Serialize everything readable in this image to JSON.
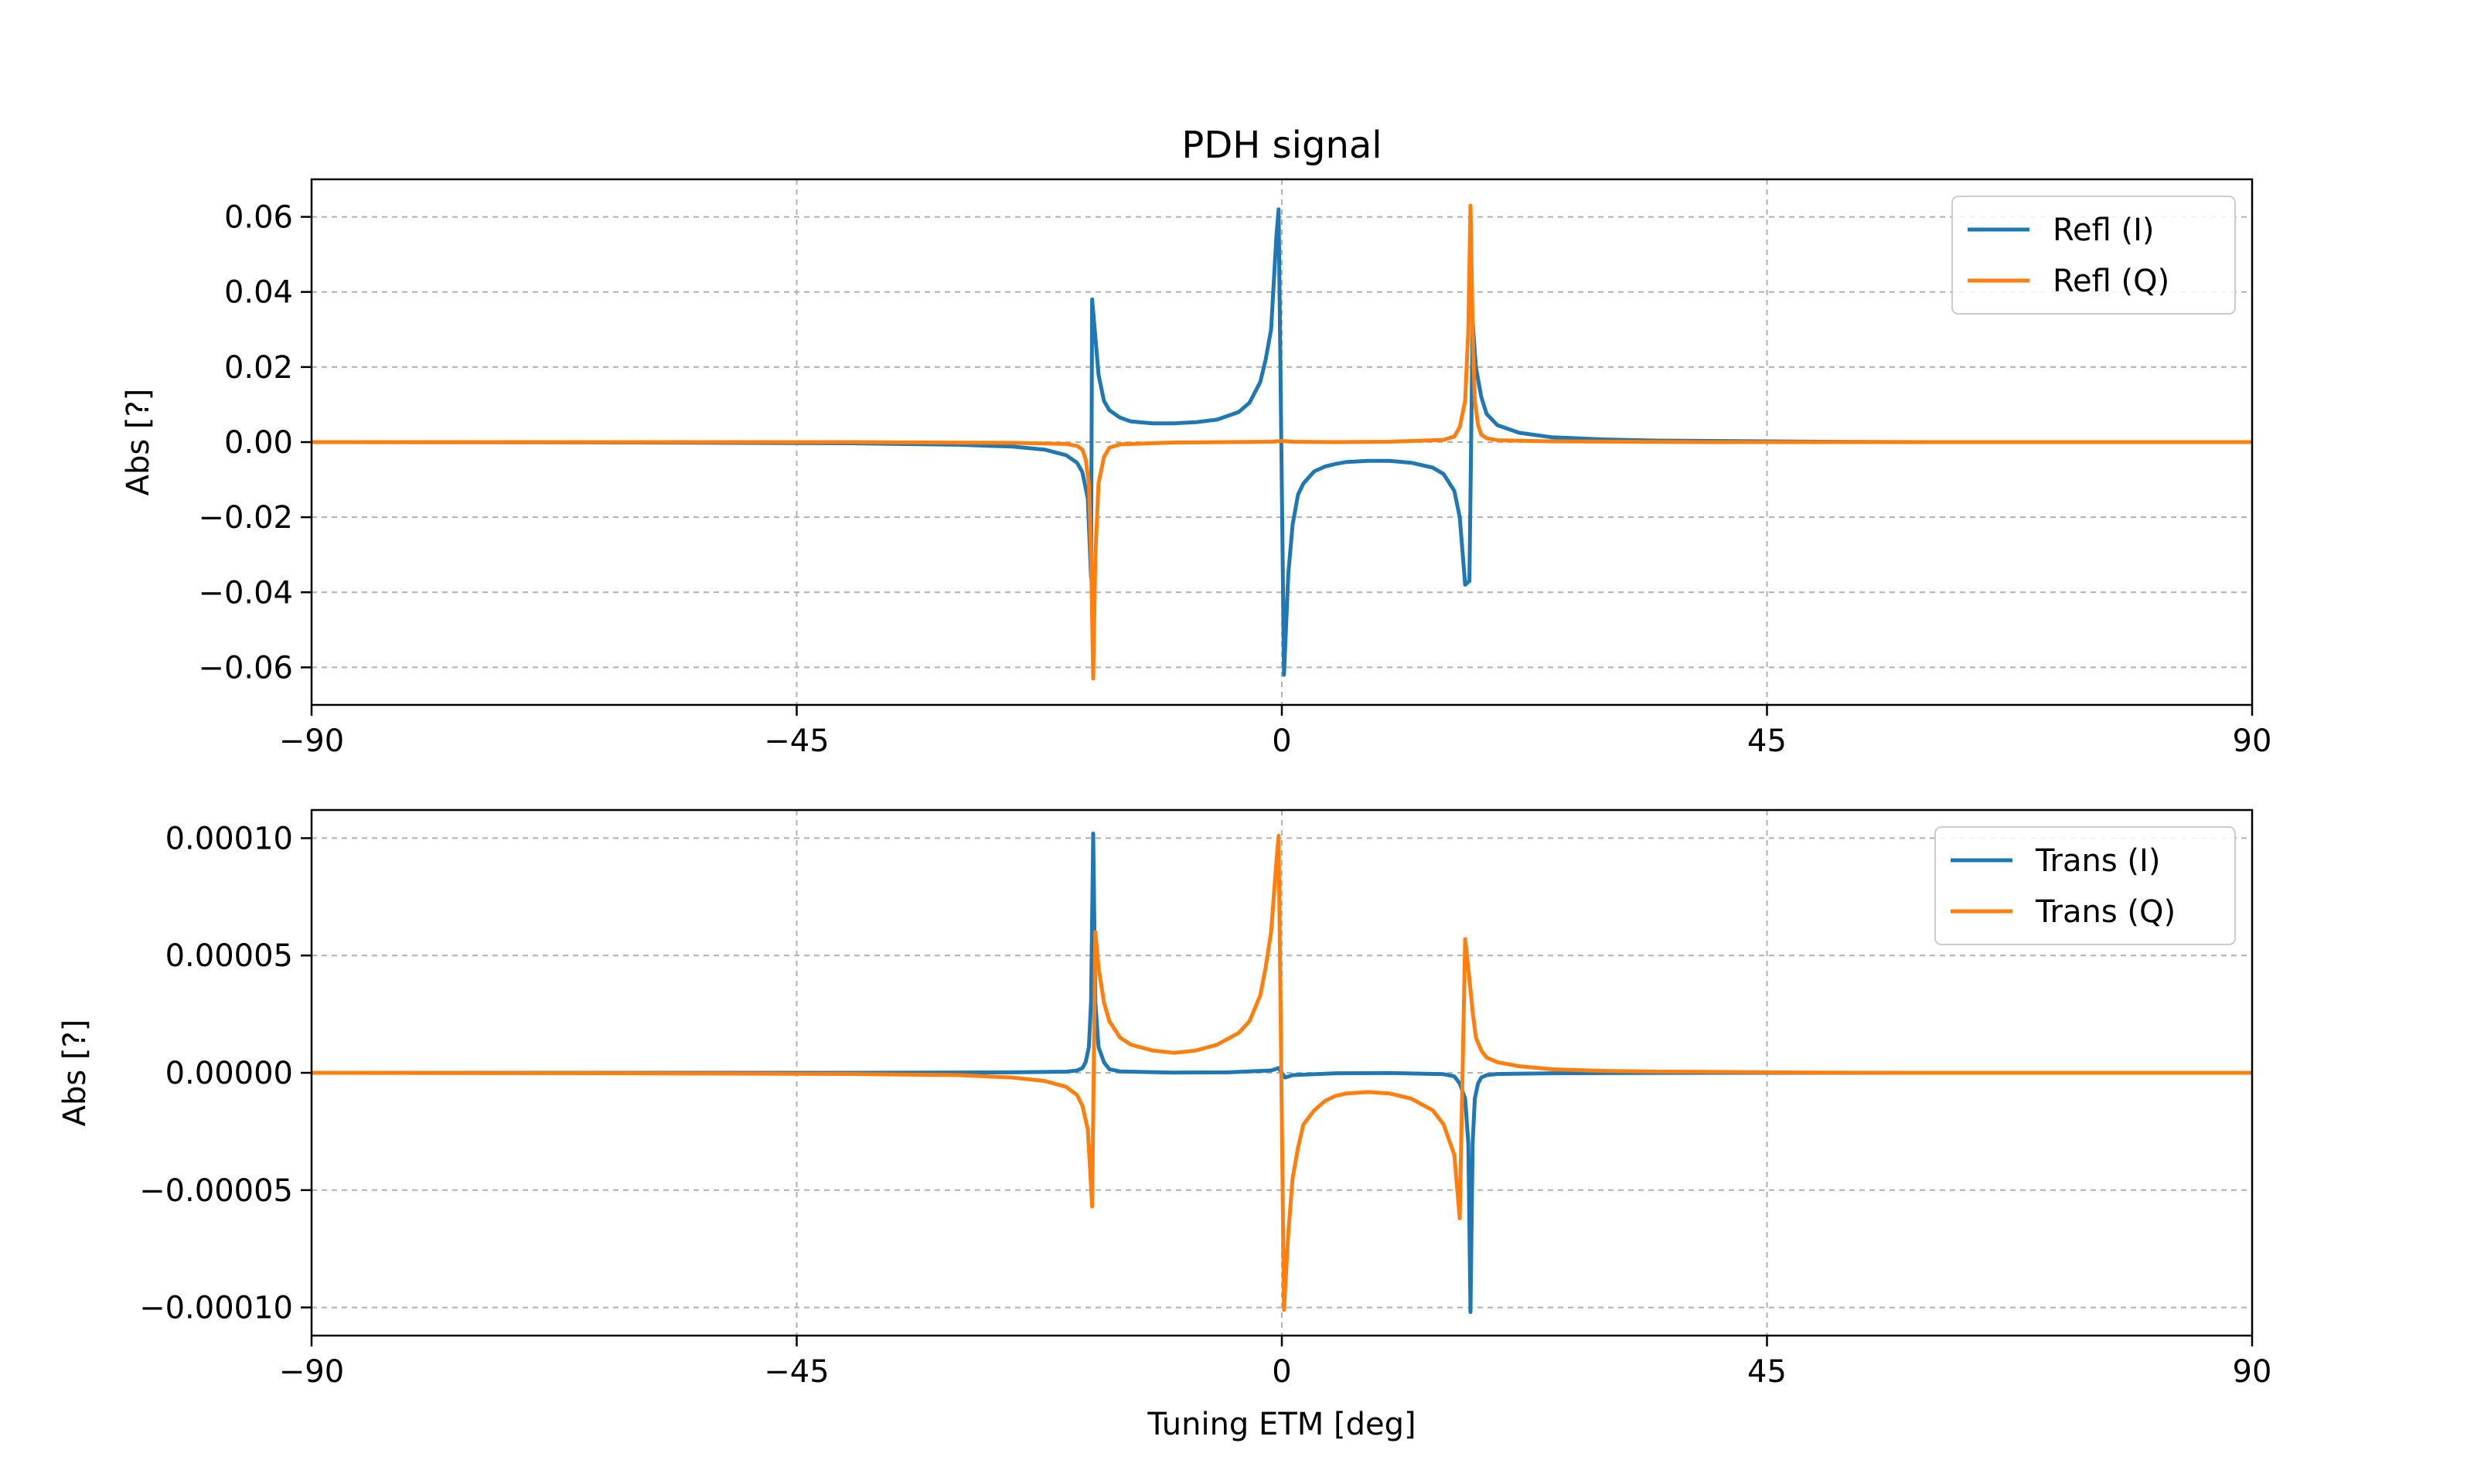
{
  "chart_data": [
    {
      "type": "line",
      "title": "PDH signal",
      "xlabel": "",
      "ylabel": "Abs [?]",
      "xlim": [
        -90,
        90
      ],
      "ylim": [
        -0.07,
        0.07
      ],
      "xticks": [
        -90,
        -45,
        0,
        45,
        90
      ],
      "xtick_labels": [
        "−90",
        "−45",
        "0",
        "45",
        "90"
      ],
      "yticks": [
        0.06,
        0.04,
        0.02,
        0.0,
        -0.02,
        -0.04,
        -0.06
      ],
      "ytick_labels": [
        "0.06",
        "0.04",
        "0.02",
        "0.00",
        "−0.02",
        "−0.04",
        "−0.06"
      ],
      "grid": true,
      "legend_position": "upper-right",
      "series": [
        {
          "name": "Refl (I)",
          "color": "#1f77b4",
          "x": [
            -90,
            -60,
            -40,
            -30,
            -25,
            -22,
            -20,
            -19,
            -18.5,
            -18,
            -17.7,
            -17.6,
            -17.3,
            -17,
            -16.5,
            -16,
            -15,
            -14,
            -12,
            -10,
            -8,
            -6,
            -4,
            -3,
            -2,
            -1.5,
            -1,
            -0.5,
            -0.3,
            0.2,
            0.6,
            1,
            1.5,
            2,
            3,
            4,
            5,
            6,
            8,
            10,
            12,
            14,
            15,
            16,
            16.5,
            17,
            17.4,
            17.7,
            18,
            18.5,
            19,
            20,
            22,
            25,
            30,
            35,
            40,
            45,
            50,
            60,
            70,
            80,
            90
          ],
          "y": [
            0.0,
            -0.0001,
            -0.0003,
            -0.0007,
            -0.0012,
            -0.002,
            -0.0035,
            -0.0055,
            -0.008,
            -0.015,
            -0.036,
            0.038,
            0.028,
            0.018,
            0.011,
            0.0085,
            0.0065,
            0.0055,
            0.005,
            0.005,
            0.0053,
            0.006,
            0.008,
            0.0105,
            0.016,
            0.022,
            0.03,
            0.055,
            0.062,
            -0.062,
            -0.035,
            -0.022,
            -0.014,
            -0.011,
            -0.0078,
            -0.0065,
            -0.0058,
            -0.0053,
            -0.005,
            -0.005,
            -0.0055,
            -0.0068,
            -0.0085,
            -0.013,
            -0.02,
            -0.038,
            -0.037,
            0.032,
            0.02,
            0.012,
            0.0075,
            0.0045,
            0.0025,
            0.0013,
            0.0007,
            0.0004,
            0.0003,
            0.0002,
            0.0001,
            0.0,
            0.0,
            0.0,
            0.0
          ]
        },
        {
          "name": "Refl (Q)",
          "color": "#ff7f0e",
          "x": [
            -90,
            -40,
            -25,
            -20,
            -19,
            -18.5,
            -18.2,
            -17.9,
            -17.7,
            -17.5,
            -17.3,
            -17,
            -16.5,
            -16,
            -15,
            -10,
            -5,
            -1,
            0,
            1,
            5,
            10,
            15,
            16,
            16.5,
            17,
            17.3,
            17.5,
            17.7,
            17.9,
            18.2,
            18.5,
            19,
            20,
            25,
            40,
            90
          ],
          "y": [
            0.0,
            0.0,
            -0.0002,
            -0.0005,
            -0.001,
            -0.002,
            -0.0045,
            -0.011,
            -0.03,
            -0.063,
            -0.03,
            -0.011,
            -0.004,
            -0.0015,
            -0.0006,
            -0.0001,
            0.0,
            0.0001,
            0.0003,
            0.0001,
            0.0,
            0.0001,
            0.0006,
            0.0015,
            0.004,
            0.011,
            0.03,
            0.063,
            0.03,
            0.011,
            0.0045,
            0.002,
            0.001,
            0.0005,
            0.0002,
            0.0,
            0.0
          ]
        }
      ]
    },
    {
      "type": "line",
      "title": "",
      "xlabel": "Tuning ETM [deg]",
      "ylabel": "Abs [?]",
      "xlim": [
        -90,
        90
      ],
      "ylim": [
        -0.000112,
        0.000112
      ],
      "xticks": [
        -90,
        -45,
        0,
        45,
        90
      ],
      "xtick_labels": [
        "−90",
        "−45",
        "0",
        "45",
        "90"
      ],
      "yticks": [
        0.0001,
        5e-05,
        0.0,
        -5e-05,
        -0.0001
      ],
      "ytick_labels": [
        "0.00010",
        "0.00005",
        "0.00000",
        "−0.00005",
        "−0.00010"
      ],
      "grid": true,
      "legend_position": "upper-right",
      "series": [
        {
          "name": "Trans (I)",
          "color": "#1f77b4",
          "x": [
            -90,
            -40,
            -25,
            -20,
            -19,
            -18.5,
            -18.2,
            -17.9,
            -17.7,
            -17.5,
            -17.3,
            -17,
            -16.5,
            -16,
            -15,
            -10,
            -5,
            -1,
            -0.3,
            0.3,
            1,
            5,
            10,
            15,
            16,
            16.5,
            17,
            17.3,
            17.5,
            17.7,
            17.9,
            18.2,
            18.5,
            19,
            20,
            25,
            40,
            90
          ],
          "y": [
            0.0,
            0.0,
            2e-07,
            5e-07,
            1e-06,
            2e-06,
            4.5e-06,
            1.1e-05,
            3e-05,
            0.000102,
            3e-05,
            1.1e-05,
            4.5e-06,
            1.5e-06,
            6e-07,
            1e-07,
            2e-07,
            1e-06,
            2e-06,
            -2e-06,
            -1e-06,
            -2e-07,
            -1e-07,
            -6e-07,
            -1.5e-06,
            -4.5e-06,
            -1.1e-05,
            -3e-05,
            -0.000102,
            -3e-05,
            -1.1e-05,
            -4.5e-06,
            -2e-06,
            -1e-06,
            -5e-07,
            -2e-07,
            0.0,
            0.0
          ]
        },
        {
          "name": "Trans (Q)",
          "color": "#ff7f0e",
          "x": [
            -90,
            -60,
            -40,
            -30,
            -25,
            -22,
            -20,
            -19,
            -18.5,
            -18,
            -17.8,
            -17.6,
            -17.3,
            -17,
            -16.5,
            -16,
            -15,
            -14,
            -12,
            -10,
            -8,
            -6,
            -4,
            -3,
            -2,
            -1.5,
            -1,
            -0.5,
            -0.3,
            0.2,
            0.6,
            1,
            1.5,
            2,
            3,
            4,
            5,
            6,
            8,
            10,
            12,
            14,
            15,
            16,
            16.5,
            17,
            17.4,
            17.7,
            18,
            18.5,
            19,
            20,
            22,
            25,
            30,
            35,
            40,
            45,
            50,
            60,
            70,
            80,
            90
          ],
          "y": [
            0.0,
            -2e-07,
            -5e-07,
            -1e-06,
            -2e-06,
            -3.5e-06,
            -6e-06,
            -9.5e-06,
            -1.4e-05,
            -2.4e-05,
            -4e-05,
            -5.7e-05,
            6e-05,
            4.5e-05,
            3e-05,
            2.2e-05,
            1.5e-05,
            1.2e-05,
            9.5e-06,
            8.5e-06,
            9.5e-06,
            1.2e-05,
            1.7e-05,
            2.2e-05,
            3.3e-05,
            4.5e-05,
            6e-05,
            9e-05,
            0.000101,
            -0.000101,
            -6.8e-05,
            -4.5e-05,
            -3.2e-05,
            -2.2e-05,
            -1.6e-05,
            -1.2e-05,
            -9.8e-06,
            -8.8e-06,
            -8.2e-06,
            -8.8e-06,
            -1.1e-05,
            -1.6e-05,
            -2.2e-05,
            -3.5e-05,
            -6.2e-05,
            5.7e-05,
            4e-05,
            2.6e-05,
            1.5e-05,
            9.5e-06,
            6.5e-06,
            4.5e-06,
            2.8e-06,
            1.5e-06,
            8e-07,
            5e-07,
            4e-07,
            2e-07,
            1e-07,
            0.0,
            0.0,
            0.0,
            0.0
          ]
        }
      ]
    }
  ]
}
